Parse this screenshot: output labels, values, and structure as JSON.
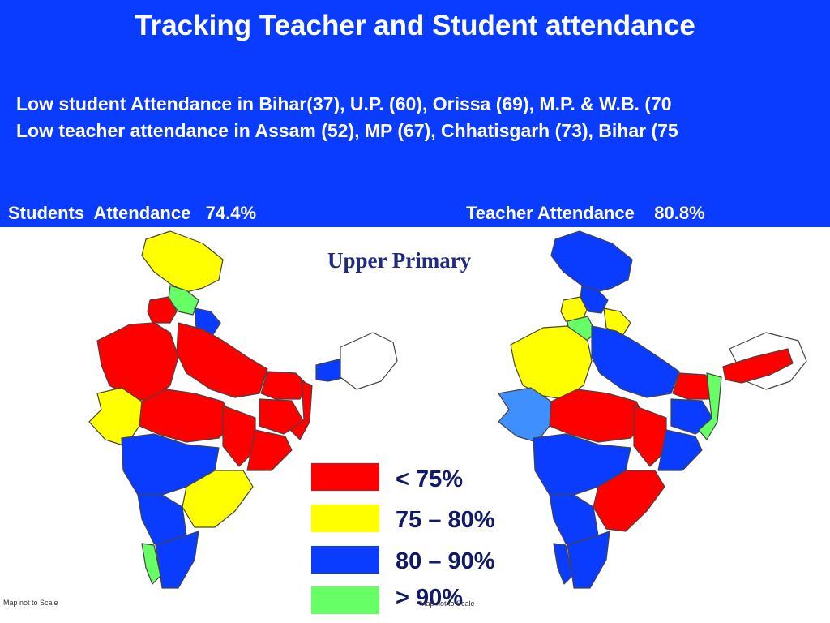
{
  "header": {
    "title": "Tracking Teacher and Student attendance",
    "note_student": "Low student Attendance in Bihar(37),  U.P. (60), Orissa (69), M.P. & W.B. (70",
    "note_teacher": "Low teacher attendance in Assam (52), MP (67), Chhatisgarh (73), Bihar (75"
  },
  "stats": {
    "students": "Students  Attendance   74.4%",
    "teachers": "Teacher Attendance    80.8%"
  },
  "level_label": "Upper Primary",
  "legend": [
    {
      "label": "< 75%",
      "color": "#ff0000"
    },
    {
      "label": "75 – 80%",
      "color": "#ffff00"
    },
    {
      "label": "80 – 90%",
      "color": "#0a3cff"
    },
    {
      "label": "> 90%",
      "color": "#66ff66"
    }
  ],
  "scale_note_left": "Map not to Scale",
  "scale_note_right": "Map not to Scale",
  "colors": {
    "banner": "#0a3cff",
    "red": "#ff0000",
    "yellow": "#ffff00",
    "blue": "#0a3cff",
    "green": "#66ff66"
  }
}
